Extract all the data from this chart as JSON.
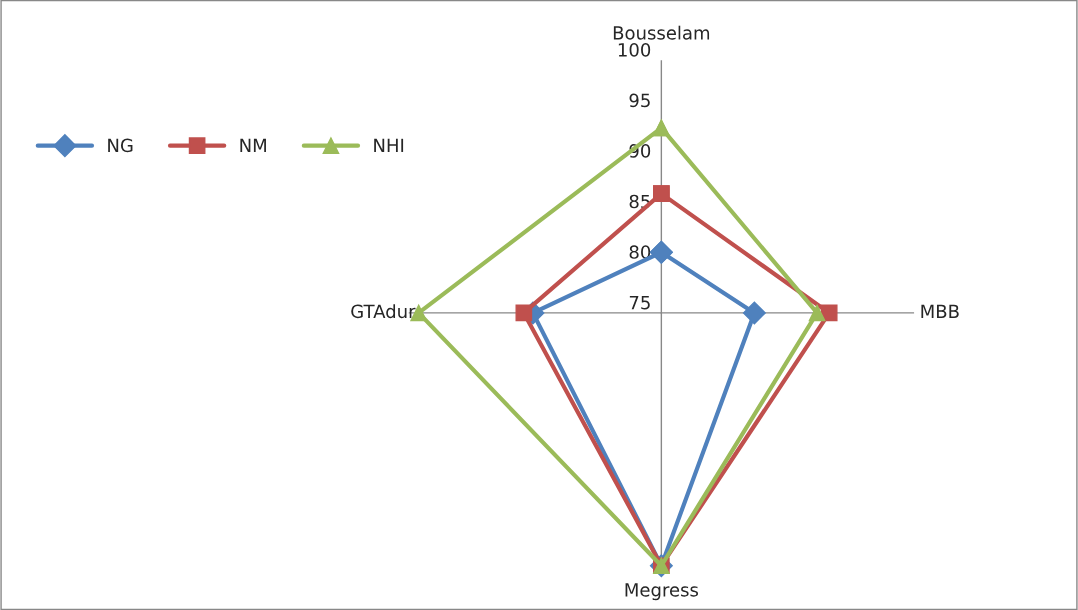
{
  "chart_data": {
    "type": "radar",
    "categories": [
      "Bousselam",
      "MBB",
      "Megress",
      "GTAdur"
    ],
    "series": [
      {
        "name": "NG",
        "color": "#4f81bd",
        "marker": "diamond",
        "values": [
          81,
          84.2,
          100,
          87.7
        ]
      },
      {
        "name": "NM",
        "color": "#c0504d",
        "marker": "square",
        "values": [
          86.8,
          91.6,
          100,
          88.6
        ]
      },
      {
        "name": "NHI",
        "color": "#9bbb59",
        "marker": "triangle",
        "values": [
          93.3,
          90.4,
          100,
          99
        ]
      }
    ],
    "ylim": [
      75,
      100
    ],
    "yticks": [
      75,
      80,
      85,
      90,
      95,
      100
    ],
    "grid": "x",
    "legend": "top left",
    "line_style": "solid"
  }
}
